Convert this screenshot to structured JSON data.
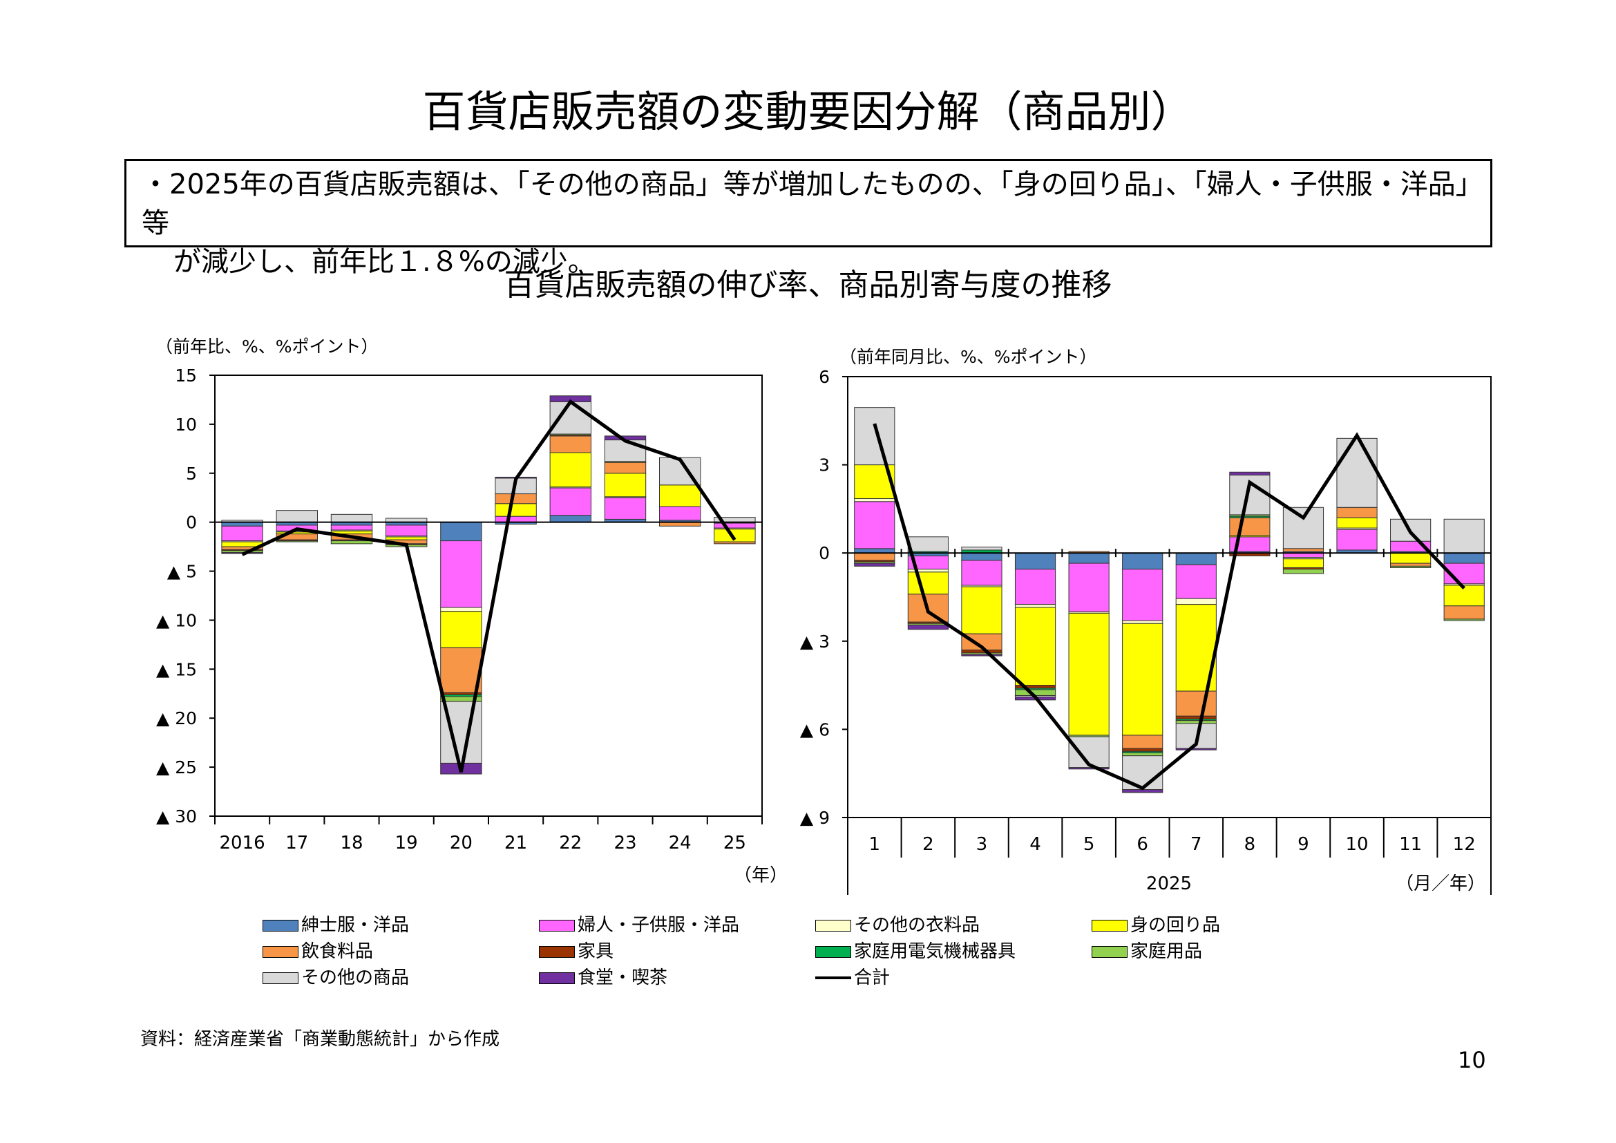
{
  "title": "百貨店販売額の変動要因分解（商品別）",
  "summary": {
    "line1": "・2025年の百貨店販売額は、「その他の商品」等が増加したものの、「身の回り品」、「婦人・子供服・洋品」等",
    "line2": "が減少し、前年比１.８%の減少。"
  },
  "chart_section_title": "百貨店販売額の伸び率、商品別寄与度の推移",
  "series_colors": {
    "mens": "#4f81bd",
    "womens": "#ff66ff",
    "other_clothing": "#ffffcc",
    "accessories": "#ffff00",
    "food": "#f79646",
    "furniture": "#993300",
    "appliances": "#00b050",
    "household": "#92d050",
    "other": "#d9d9d9",
    "dining": "#7030a0",
    "total": "#000000"
  },
  "legend": [
    {
      "key": "mens",
      "label": "紳士服・洋品"
    },
    {
      "key": "womens",
      "label": "婦人・子供服・洋品"
    },
    {
      "key": "other_clothing",
      "label": "その他の衣料品"
    },
    {
      "key": "accessories",
      "label": "身の回り品"
    },
    {
      "key": "food",
      "label": "飲食料品"
    },
    {
      "key": "furniture",
      "label": "家具"
    },
    {
      "key": "appliances",
      "label": "家庭用電気機械器具"
    },
    {
      "key": "household",
      "label": "家庭用品"
    },
    {
      "key": "other",
      "label": "その他の商品"
    },
    {
      "key": "dining",
      "label": "食堂・喫茶"
    },
    {
      "key": "total",
      "label": "合計",
      "line": true
    }
  ],
  "chart_data": [
    {
      "type": "bar",
      "stacked": true,
      "ylabel": "（前年比、%、%ポイント）",
      "xunit": "（年）",
      "ylim": [
        -30,
        15
      ],
      "yticks": [
        15,
        10,
        5,
        0,
        -5,
        -10,
        -15,
        -20,
        -25,
        -30
      ],
      "ytick_labels": [
        "15",
        "10",
        "5",
        "0",
        "▲ 5",
        "▲ 10",
        "▲ 15",
        "▲ 20",
        "▲ 25",
        "▲ 30"
      ],
      "categories": [
        "2016",
        "17",
        "18",
        "19",
        "20",
        "21",
        "22",
        "23",
        "24",
        "25"
      ],
      "series": [
        {
          "key": "mens",
          "values": [
            -0.4,
            -0.3,
            -0.3,
            -0.3,
            -1.9,
            -0.2,
            0.7,
            0.3,
            0.2,
            -0.1
          ]
        },
        {
          "key": "womens",
          "values": [
            -1.5,
            -0.6,
            -0.5,
            -1.1,
            -6.8,
            0.6,
            2.8,
            2.2,
            1.4,
            -0.5
          ]
        },
        {
          "key": "other_clothing",
          "values": [
            -0.1,
            -0.1,
            -0.1,
            -0.1,
            -0.4,
            0.0,
            0.1,
            0.1,
            0.0,
            -0.1
          ]
        },
        {
          "key": "accessories",
          "values": [
            -0.5,
            -0.2,
            -0.3,
            -0.3,
            -3.7,
            1.3,
            3.5,
            2.4,
            2.2,
            -1.3
          ]
        },
        {
          "key": "food",
          "values": [
            -0.3,
            -0.6,
            -0.6,
            -0.4,
            -4.6,
            1.0,
            1.7,
            1.1,
            -0.4,
            -0.2
          ]
        },
        {
          "key": "furniture",
          "values": [
            -0.1,
            -0.1,
            -0.1,
            -0.1,
            -0.2,
            0.0,
            0.1,
            0.0,
            0.0,
            0.0
          ]
        },
        {
          "key": "appliances",
          "values": [
            0.0,
            0.0,
            0.0,
            0.0,
            -0.2,
            0.0,
            0.0,
            0.0,
            0.0,
            0.0
          ]
        },
        {
          "key": "household",
          "values": [
            -0.2,
            -0.1,
            -0.3,
            -0.2,
            -0.5,
            0.0,
            0.1,
            0.1,
            0.0,
            0.0
          ]
        },
        {
          "key": "other",
          "values": [
            0.2,
            1.2,
            0.8,
            0.4,
            -6.3,
            1.6,
            3.3,
            2.2,
            2.8,
            0.5
          ]
        },
        {
          "key": "dining",
          "values": [
            -0.1,
            0.0,
            0.0,
            0.0,
            -1.1,
            0.1,
            0.6,
            0.4,
            0.0,
            0.0
          ]
        }
      ],
      "total": [
        -3.3,
        -0.7,
        -1.5,
        -2.3,
        -25.5,
        4.4,
        12.3,
        8.3,
        6.4,
        -1.8
      ]
    },
    {
      "type": "bar",
      "stacked": true,
      "ylabel": "（前年同月比、%、%ポイント）",
      "xgroup": "2025",
      "xunit": "（月／年）",
      "ylim": [
        -9,
        6
      ],
      "yticks": [
        6,
        3,
        0,
        -3,
        -6,
        -9
      ],
      "ytick_labels": [
        "6",
        "3",
        "0",
        "▲ 3",
        "▲ 6",
        "▲ 9"
      ],
      "categories": [
        "1",
        "2",
        "3",
        "4",
        "5",
        "6",
        "7",
        "8",
        "9",
        "10",
        "11",
        "12"
      ],
      "series": [
        {
          "key": "mens",
          "values": [
            0.15,
            -0.1,
            -0.25,
            -0.55,
            -0.35,
            -0.55,
            -0.4,
            0.05,
            0.05,
            0.1,
            0.05,
            -0.35
          ]
        },
        {
          "key": "womens",
          "values": [
            1.6,
            -0.45,
            -0.85,
            -1.2,
            -1.65,
            -1.75,
            -1.15,
            0.5,
            -0.15,
            0.7,
            0.35,
            -0.7
          ]
        },
        {
          "key": "other_clothing",
          "values": [
            0.1,
            -0.1,
            -0.05,
            -0.1,
            -0.05,
            -0.1,
            -0.2,
            0.0,
            -0.05,
            0.05,
            0.0,
            -0.05
          ]
        },
        {
          "key": "accessories",
          "values": [
            1.15,
            -0.75,
            -1.6,
            -2.65,
            -4.15,
            -3.8,
            -2.95,
            0.05,
            -0.3,
            0.35,
            -0.35,
            -0.7
          ]
        },
        {
          "key": "food",
          "values": [
            -0.25,
            -0.95,
            -0.55,
            0.0,
            0.05,
            -0.45,
            -0.85,
            0.6,
            0.1,
            0.35,
            -0.1,
            -0.45
          ]
        },
        {
          "key": "furniture",
          "values": [
            -0.05,
            -0.05,
            -0.1,
            -0.1,
            0.0,
            -0.1,
            -0.1,
            -0.1,
            -0.05,
            0.0,
            0.0,
            0.0
          ]
        },
        {
          "key": "appliances",
          "values": [
            0.0,
            0.05,
            0.1,
            -0.05,
            0.0,
            -0.05,
            -0.05,
            0.05,
            0.0,
            0.0,
            0.0,
            0.0
          ]
        },
        {
          "key": "household",
          "values": [
            -0.05,
            -0.05,
            -0.05,
            -0.2,
            -0.05,
            -0.1,
            -0.1,
            0.05,
            -0.15,
            0.0,
            -0.05,
            -0.05
          ]
        },
        {
          "key": "other",
          "values": [
            1.95,
            0.5,
            0.1,
            -0.05,
            -1.05,
            -1.15,
            -0.85,
            1.35,
            1.4,
            2.35,
            0.75,
            1.15
          ]
        },
        {
          "key": "dining",
          "values": [
            -0.1,
            -0.15,
            -0.05,
            -0.1,
            -0.05,
            -0.1,
            -0.05,
            0.1,
            0.0,
            0.0,
            0.0,
            0.0
          ]
        }
      ],
      "total": [
        4.4,
        -2.0,
        -3.2,
        -4.9,
        -7.2,
        -8.0,
        -6.5,
        2.4,
        1.2,
        4.0,
        0.7,
        -1.2
      ]
    }
  ],
  "source": "資料：経済産業省「商業動態統計」から作成",
  "page_number": "10"
}
